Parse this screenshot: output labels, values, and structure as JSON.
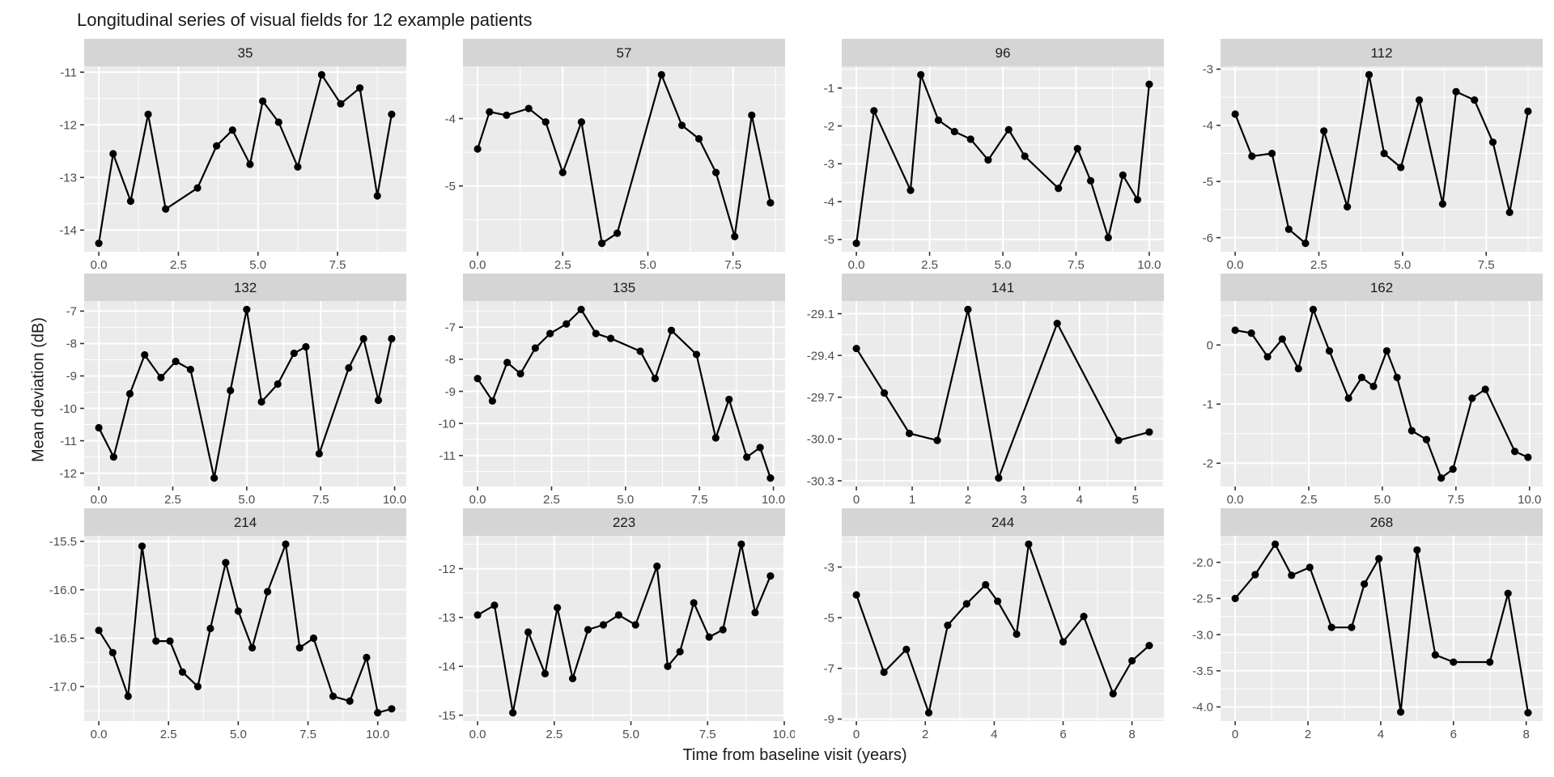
{
  "chart_data": {
    "type": "line",
    "title": "Longitudinal series of visual fields for 12 example patients",
    "xlabel": "Time from baseline visit (years)",
    "ylabel": "Mean deviation (dB)",
    "legend": "none",
    "grid": "on",
    "style": {
      "panel_bg": "#EBEBEB",
      "strip_bg": "#D5D5D5",
      "grid_color": "#FFFFFF",
      "line_color": "#000000",
      "point_color": "#000000",
      "tick_text_color": "#4D4D4D",
      "tick_mark_color": "#333333",
      "strip_text_color": "#1A1A1A"
    },
    "facets": [
      {
        "label": "35",
        "x": [
          0,
          0.45,
          1.0,
          1.55,
          2.1,
          3.1,
          3.7,
          4.2,
          4.75,
          5.15,
          5.65,
          6.25,
          7.0,
          7.6,
          8.2,
          8.75,
          9.2
        ],
        "y": [
          -14.25,
          -12.55,
          -13.45,
          -11.8,
          -13.6,
          -13.2,
          -12.4,
          -12.1,
          -12.75,
          -11.55,
          -11.95,
          -12.8,
          -11.05,
          -11.6,
          -11.3,
          -13.35,
          -11.8
        ],
        "x_tick_values": [
          0,
          2.5,
          5,
          7.5
        ],
        "x_tick_labels": [
          "0.0",
          "2.5",
          "5.0",
          "7.5"
        ],
        "y_tick_values": [
          -11,
          -12,
          -13,
          -14
        ],
        "y_tick_labels": [
          "-11",
          "-12",
          "-13",
          "-14"
        ]
      },
      {
        "label": "57",
        "x": [
          0,
          0.35,
          0.85,
          1.5,
          2.0,
          2.5,
          3.05,
          3.65,
          4.1,
          5.4,
          6.0,
          6.5,
          7.0,
          7.55,
          8.05,
          8.6
        ],
        "y": [
          -4.45,
          -3.9,
          -3.95,
          -3.85,
          -4.05,
          -4.8,
          -4.05,
          -5.85,
          -5.7,
          -3.35,
          -4.1,
          -4.3,
          -4.8,
          -5.75,
          -3.95,
          -5.25
        ],
        "x_tick_values": [
          0,
          2.5,
          5,
          7.5
        ],
        "x_tick_labels": [
          "0.0",
          "2.5",
          "5.0",
          "7.5"
        ],
        "y_tick_values": [
          -4,
          -5
        ],
        "y_tick_labels": [
          "-4",
          "-5"
        ]
      },
      {
        "label": "96",
        "x": [
          0,
          0.6,
          1.85,
          2.2,
          2.8,
          3.35,
          3.9,
          4.5,
          5.2,
          5.75,
          6.9,
          7.55,
          8.0,
          8.6,
          9.1,
          9.6,
          10.0
        ],
        "y": [
          -5.1,
          -1.6,
          -3.7,
          -0.65,
          -1.85,
          -2.15,
          -2.35,
          -2.9,
          -2.1,
          -2.8,
          -3.65,
          -2.6,
          -3.45,
          -4.95,
          -3.3,
          -3.95,
          -0.9
        ],
        "x_tick_values": [
          0,
          2.5,
          5,
          7.5,
          10
        ],
        "x_tick_labels": [
          "0.0",
          "2.5",
          "5.0",
          "7.5",
          "10.0"
        ],
        "y_tick_values": [
          -1,
          -2,
          -3,
          -4,
          -5
        ],
        "y_tick_labels": [
          "-1",
          "-2",
          "-3",
          "-4",
          "-5"
        ]
      },
      {
        "label": "112",
        "x": [
          0,
          0.5,
          1.1,
          1.6,
          2.1,
          2.65,
          3.35,
          4.0,
          4.45,
          4.95,
          5.5,
          6.2,
          6.6,
          7.15,
          7.7,
          8.2,
          8.75
        ],
        "y": [
          -3.8,
          -4.55,
          -4.5,
          -5.85,
          -6.1,
          -4.1,
          -5.45,
          -3.1,
          -4.5,
          -4.75,
          -3.55,
          -5.4,
          -3.4,
          -3.55,
          -4.3,
          -5.55,
          -3.75
        ],
        "x_tick_values": [
          0,
          2.5,
          5,
          7.5
        ],
        "x_tick_labels": [
          "0.0",
          "2.5",
          "5.0",
          "7.5"
        ],
        "y_tick_values": [
          -3,
          -4,
          -5,
          -6
        ],
        "y_tick_labels": [
          "-3",
          "-4",
          "-5",
          "-6"
        ]
      },
      {
        "label": "132",
        "x": [
          0,
          0.5,
          1.05,
          1.55,
          2.1,
          2.6,
          3.1,
          3.9,
          4.45,
          5.0,
          5.5,
          6.05,
          6.6,
          7.0,
          7.45,
          8.45,
          8.95,
          9.45,
          9.9
        ],
        "y": [
          -10.6,
          -11.5,
          -9.55,
          -8.35,
          -9.05,
          -8.55,
          -8.8,
          -12.15,
          -9.45,
          -6.95,
          -9.8,
          -9.25,
          -8.3,
          -8.1,
          -11.4,
          -8.75,
          -7.85,
          -9.75,
          -7.85
        ],
        "x_tick_values": [
          0,
          2.5,
          5,
          7.5,
          10
        ],
        "x_tick_labels": [
          "0.0",
          "2.5",
          "5.0",
          "7.5",
          "10.0"
        ],
        "y_tick_values": [
          -7,
          -8,
          -9,
          -10,
          -11,
          -12
        ],
        "y_tick_labels": [
          "-7",
          "-8",
          "-9",
          "-10",
          "-11",
          "-12"
        ]
      },
      {
        "label": "135",
        "x": [
          0,
          0.5,
          1.0,
          1.45,
          1.95,
          2.45,
          3.0,
          3.5,
          4.0,
          4.5,
          5.5,
          6.0,
          6.55,
          7.4,
          8.05,
          8.5,
          9.1,
          9.55,
          9.9
        ],
        "y": [
          -8.6,
          -9.3,
          -8.1,
          -8.45,
          -7.65,
          -7.2,
          -6.9,
          -6.45,
          -7.2,
          -7.35,
          -7.75,
          -8.6,
          -7.1,
          -7.85,
          -10.45,
          -9.25,
          -11.05,
          -10.75,
          -11.7
        ],
        "x_tick_values": [
          0,
          2.5,
          5,
          7.5,
          10
        ],
        "x_tick_labels": [
          "0.0",
          "2.5",
          "5.0",
          "7.5",
          "10.0"
        ],
        "y_tick_values": [
          -7,
          -8,
          -9,
          -10,
          -11
        ],
        "y_tick_labels": [
          "-7",
          "-8",
          "-9",
          "-10",
          "-11"
        ]
      },
      {
        "label": "141",
        "x": [
          0,
          0.5,
          0.95,
          1.45,
          2.0,
          2.55,
          3.6,
          4.7,
          5.25
        ],
        "y": [
          -29.35,
          -29.67,
          -29.96,
          -30.01,
          -29.07,
          -30.28,
          -29.17,
          -30.01,
          -29.95
        ],
        "x_tick_values": [
          0,
          1,
          2,
          3,
          4,
          5
        ],
        "x_tick_labels": [
          "0",
          "1",
          "2",
          "3",
          "4",
          "5"
        ],
        "y_tick_values": [
          -29.1,
          -29.4,
          -29.7,
          -30.0,
          -30.3
        ],
        "y_tick_labels": [
          "-29.1",
          "-29.4",
          "-29.7",
          "-30.0",
          "-30.3"
        ]
      },
      {
        "label": "162",
        "x": [
          0,
          0.55,
          1.1,
          1.6,
          2.15,
          2.65,
          3.2,
          3.85,
          4.3,
          4.7,
          5.15,
          5.5,
          6.0,
          6.5,
          7.0,
          7.4,
          8.05,
          8.5,
          9.5,
          9.95
        ],
        "y": [
          0.25,
          0.2,
          -0.2,
          0.1,
          -0.4,
          0.6,
          -0.1,
          -0.9,
          -0.55,
          -0.7,
          -0.1,
          -0.55,
          -1.45,
          -1.6,
          -2.25,
          -2.1,
          -0.9,
          -0.75,
          -1.8,
          -1.9
        ],
        "x_tick_values": [
          0,
          2.5,
          5,
          7.5,
          10
        ],
        "x_tick_labels": [
          "0.0",
          "2.5",
          "5.0",
          "7.5",
          "10.0"
        ],
        "y_tick_values": [
          0,
          -1,
          -2
        ],
        "y_tick_labels": [
          "0",
          "-1",
          "-2"
        ]
      },
      {
        "label": "214",
        "x": [
          0,
          0.5,
          1.05,
          1.55,
          2.05,
          2.55,
          3.0,
          3.55,
          4.0,
          4.55,
          5.0,
          5.5,
          6.05,
          6.7,
          7.2,
          7.7,
          8.4,
          9.0,
          9.6,
          10.0,
          10.5
        ],
        "y": [
          -16.42,
          -16.65,
          -17.1,
          -15.55,
          -16.53,
          -16.53,
          -16.85,
          -17.0,
          -16.4,
          -15.72,
          -16.22,
          -16.6,
          -16.02,
          -15.53,
          -16.6,
          -16.5,
          -17.1,
          -17.15,
          -16.7,
          -17.27,
          -17.23
        ],
        "x_tick_values": [
          0,
          2.5,
          5,
          7.5,
          10
        ],
        "x_tick_labels": [
          "0.0",
          "2.5",
          "5.0",
          "7.5",
          "10.0"
        ],
        "y_tick_values": [
          -15.5,
          -16.0,
          -16.5,
          -17.0
        ],
        "y_tick_labels": [
          "-15.5",
          "-16.0",
          "-16.5",
          "-17.0"
        ]
      },
      {
        "label": "223",
        "x": [
          0,
          0.55,
          1.15,
          1.65,
          2.2,
          2.6,
          3.1,
          3.6,
          4.1,
          4.6,
          5.15,
          5.85,
          6.2,
          6.6,
          7.05,
          7.55,
          8.0,
          8.6,
          9.05,
          9.55
        ],
        "y": [
          -12.95,
          -12.75,
          -14.95,
          -13.3,
          -14.15,
          -12.8,
          -14.25,
          -13.25,
          -13.15,
          -12.95,
          -13.15,
          -11.95,
          -14.0,
          -13.7,
          -12.7,
          -13.4,
          -13.25,
          -11.5,
          -12.9,
          -12.15
        ],
        "x_tick_values": [
          0,
          2.5,
          5,
          7.5,
          10
        ],
        "x_tick_labels": [
          "0.0",
          "2.5",
          "5.0",
          "7.5",
          "10.0"
        ],
        "y_tick_values": [
          -12,
          -13,
          -14,
          -15
        ],
        "y_tick_labels": [
          "-12",
          "-13",
          "-14",
          "-15"
        ]
      },
      {
        "label": "244",
        "x": [
          0,
          0.8,
          1.45,
          2.1,
          2.65,
          3.2,
          3.75,
          4.1,
          4.65,
          5.0,
          6.0,
          6.6,
          7.45,
          8.0,
          8.5
        ],
        "y": [
          -4.1,
          -7.15,
          -6.25,
          -8.75,
          -5.3,
          -4.45,
          -3.7,
          -4.35,
          -5.65,
          -2.1,
          -5.95,
          -4.95,
          -8.0,
          -6.7,
          -6.1
        ],
        "x_tick_values": [
          0,
          2,
          4,
          6,
          8
        ],
        "x_tick_labels": [
          "0",
          "2",
          "4",
          "6",
          "8"
        ],
        "y_tick_values": [
          -3,
          -5,
          -7,
          -9
        ],
        "y_tick_labels": [
          "-3",
          "-5",
          "-7",
          "-9"
        ]
      },
      {
        "label": "268",
        "x": [
          0,
          0.55,
          1.1,
          1.55,
          2.05,
          2.65,
          3.2,
          3.55,
          3.95,
          4.55,
          5.0,
          5.5,
          6.0,
          7.0,
          7.5,
          8.05
        ],
        "y": [
          -2.5,
          -2.17,
          -1.75,
          -2.18,
          -2.07,
          -2.9,
          -2.9,
          -2.3,
          -1.95,
          -4.07,
          -1.83,
          -3.28,
          -3.38,
          -3.38,
          -2.43,
          -4.08
        ],
        "x_tick_values": [
          0,
          2,
          4,
          6,
          8
        ],
        "x_tick_labels": [
          "0",
          "2",
          "4",
          "6",
          "8"
        ],
        "y_tick_values": [
          -2.0,
          -2.5,
          -3.0,
          -3.5,
          -4.0
        ],
        "y_tick_labels": [
          "-2.0",
          "-2.5",
          "-3.0",
          "-3.5",
          "-4.0"
        ]
      }
    ]
  }
}
